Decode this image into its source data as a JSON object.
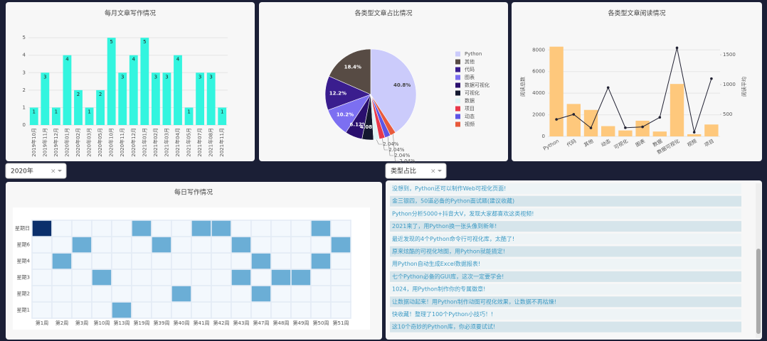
{
  "chart_data": [
    {
      "type": "bar",
      "title": "每月文章写作情况",
      "color": "#33f5df",
      "categories": [
        "2019年10月",
        "2019年11月",
        "2019年12月",
        "2020年01月",
        "2020年02月",
        "2020年03月",
        "2020年05月",
        "2020年10月",
        "2020年11月",
        "2020年12月",
        "2021年01月",
        "2021年02月",
        "2021年03月",
        "2021年04月",
        "2021年05月",
        "2021年07月",
        "2021年08月",
        "2021年11月"
      ],
      "values": [
        1,
        3,
        1,
        4,
        2,
        1,
        2,
        5,
        3,
        4,
        5,
        3,
        3,
        4,
        1,
        3,
        3,
        1
      ],
      "ylim": [
        0,
        5.25
      ],
      "yticks": [
        0,
        1,
        2,
        3,
        4,
        5
      ],
      "grid": true
    },
    {
      "type": "pie",
      "title": "各类型文章占比情况",
      "categories": [
        "Python",
        "其他",
        "代码",
        "图表",
        "数据可视化",
        "可视化",
        "数据",
        "项目",
        "动态",
        "视频"
      ],
      "values": [
        40.8,
        18.4,
        12.2,
        10.2,
        6.12,
        4.08,
        2.04,
        2.04,
        2.04,
        2.04
      ],
      "value_labels": [
        "40.8%",
        "18.4%",
        "12.2%",
        "10.2%",
        "6.12%",
        "4.08%",
        "2.04%",
        "2.04%",
        "2.04%",
        "2.04%"
      ],
      "colors": [
        "#cbcbfb",
        "#574b44",
        "#3a1d8e",
        "#7c6ff1",
        "#2a0f6e",
        "#14182f",
        "#ddf3f5",
        "#e8394a",
        "#5e55e6",
        "#e85a3c"
      ]
    },
    {
      "type": "bar-line",
      "title": "各类型文章阅读情况",
      "categories": [
        "Python",
        "代码",
        "其他",
        "动态",
        "可视化",
        "图表",
        "数据",
        "数据可视化",
        "视频",
        "项目"
      ],
      "series": [
        {
          "name": "阅读总数",
          "type": "bar",
          "color": "#fec87c",
          "values": [
            8300,
            3000,
            2450,
            950,
            550,
            1450,
            450,
            4850,
            200,
            1100
          ]
        },
        {
          "name": "阅读平均",
          "type": "line",
          "axis": "y2",
          "color": "#222233",
          "values": [
            415,
            500,
            272,
            950,
            275,
            290,
            450,
            1617,
            200,
            1100
          ]
        }
      ],
      "ylabel": "阅读总数",
      "y2label": "阅读平均",
      "ylim": [
        0,
        9200
      ],
      "yticks": [
        0,
        2000,
        4000,
        6000,
        8000
      ],
      "y2lim": [
        130,
        1800
      ],
      "y2ticks": [
        500,
        1000,
        1500
      ],
      "grid": true
    },
    {
      "type": "heatmap",
      "title": "每日写作情况",
      "x": [
        "第1周",
        "第2周",
        "第3周",
        "第10周",
        "第13周",
        "第19周",
        "第39周",
        "第40周",
        "第41周",
        "第42周",
        "第43周",
        "第47周",
        "第48周",
        "第49周",
        "第50周",
        "第51周"
      ],
      "y": [
        "星期1",
        "星期2",
        "星期3",
        "星期4",
        "星期6",
        "星期日"
      ],
      "z": [
        [
          0,
          0,
          0,
          0,
          1,
          0,
          0,
          0,
          0,
          0,
          0,
          0,
          0,
          0,
          0,
          0
        ],
        [
          0,
          0,
          0,
          0,
          0,
          0,
          0,
          1,
          0,
          0,
          0,
          1,
          0,
          0,
          0,
          0
        ],
        [
          0,
          0,
          0,
          1,
          0,
          0,
          0,
          0,
          0,
          0,
          1,
          0,
          1,
          1,
          0,
          0
        ],
        [
          0,
          1,
          0,
          0,
          0,
          0,
          0,
          0,
          0,
          0,
          0,
          1,
          0,
          0,
          1,
          0
        ],
        [
          0,
          0,
          1,
          0,
          0,
          0,
          1,
          0,
          0,
          0,
          1,
          0,
          0,
          0,
          0,
          1
        ],
        [
          2,
          0,
          0,
          0,
          0,
          1,
          0,
          0,
          1,
          1,
          0,
          0,
          0,
          0,
          1,
          0
        ]
      ],
      "colors": [
        "#f3f8fd",
        "#6baed6",
        "#0b2f6b"
      ]
    }
  ],
  "dropdowns": [
    "2020年",
    "类型占比"
  ],
  "articles": [
    "没想到，Python还可以制作Web可视化页面!",
    "金三银四，50道必备的Python面试题(建议收藏)",
    "Python分析5000+抖音大V，发现大家都喜欢这类视频!",
    "2021来了，用Python换一张头像到新年!",
    "最近发现的4个Python命令行可视化库，太酷了!",
    "原来炫酷的可视化地图，用Python就能搞定!",
    "用Python自动生成Excel数据报表!",
    "七个Python必备的GUI库，这次一定要学会!",
    "1024，用Python制作你的专属徽章!",
    "让数据动起来！用Python制作动图可视化效果，让数据不再枯燥!",
    "快收藏！整理了100个Python小技巧！!",
    "这10个奇妙的Python库，你必须要试试!"
  ]
}
